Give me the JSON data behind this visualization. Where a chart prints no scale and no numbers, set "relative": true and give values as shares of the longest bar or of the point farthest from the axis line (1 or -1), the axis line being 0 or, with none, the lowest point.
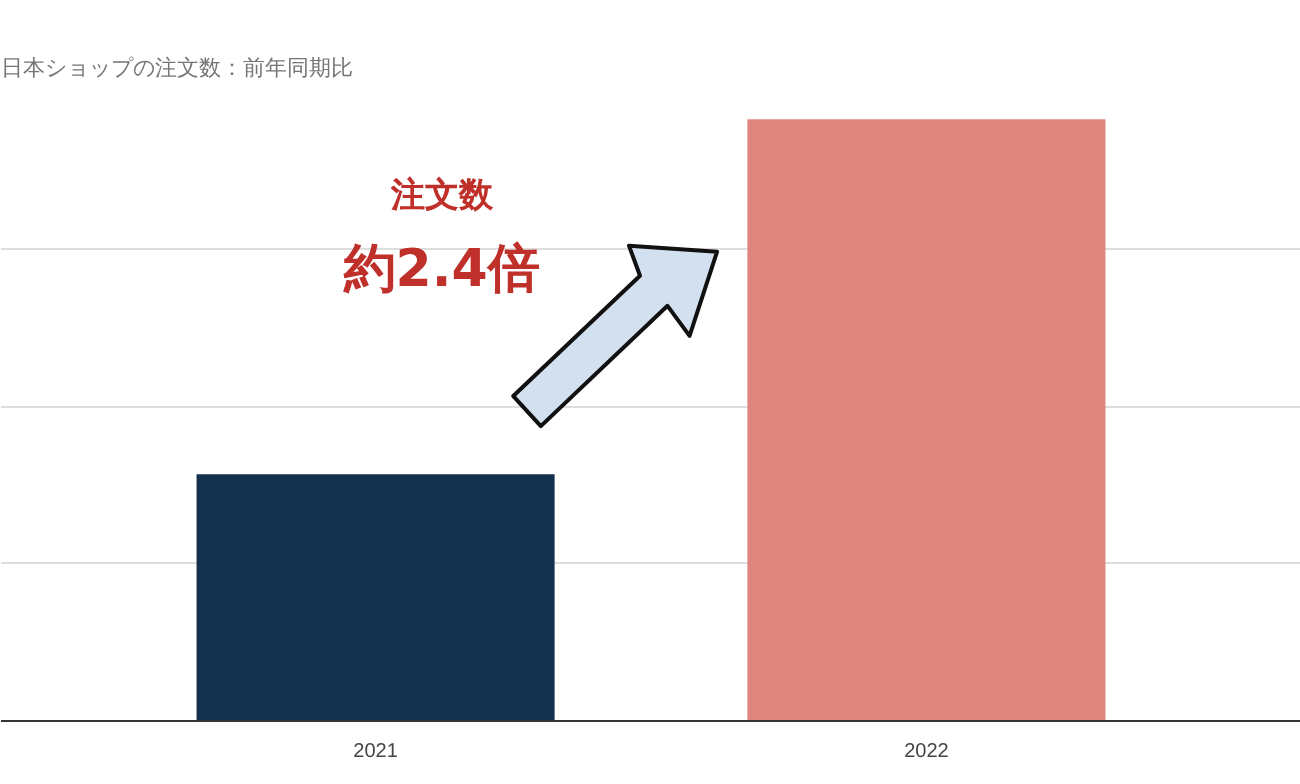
{
  "chart_data": {
    "type": "bar",
    "title": "日本ショップの注文数：前年同期比",
    "categories": [
      "2021",
      "2022"
    ],
    "colors": [
      "#14304f",
      "#e0857e"
    ],
    "values": [
      0.41,
      1
    ],
    "relative": true,
    "grid": "y",
    "annotations": [
      "注文数",
      "約2.4倍"
    ]
  }
}
